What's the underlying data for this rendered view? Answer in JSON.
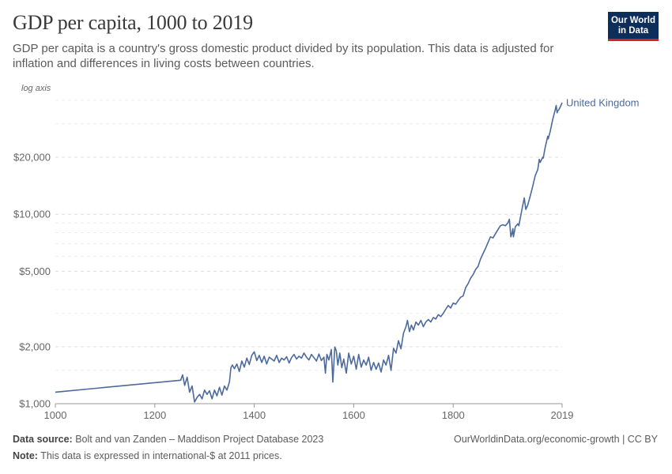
{
  "header": {
    "title": "GDP per capita, 1000 to 2019",
    "subtitle": "GDP per capita is a country's gross domestic product divided by its population. This data is adjusted for inflation and differences in living costs between countries.",
    "logo_line1": "Our World",
    "logo_line2": "in Data"
  },
  "footer": {
    "source_label": "Data source:",
    "source_text": "Bolt and van Zanden – Maddison Project Database 2023",
    "url_text": "OurWorldinData.org/economic-growth | CC BY",
    "note_label": "Note:",
    "note_text": "This data is expressed in international-$ at 2011 prices."
  },
  "colors": {
    "series": "#4c6a9c",
    "grid": "#dddddd",
    "axis": "#666666"
  },
  "chart_data": {
    "type": "line",
    "scale_label": "log axis",
    "yscale": "log",
    "xlim": [
      1000,
      2019
    ],
    "ylim": [
      1000,
      45000
    ],
    "x_ticks": [
      {
        "value": 1000,
        "label": "1000"
      },
      {
        "value": 1200,
        "label": "1200"
      },
      {
        "value": 1400,
        "label": "1400"
      },
      {
        "value": 1600,
        "label": "1600"
      },
      {
        "value": 1800,
        "label": "1800"
      },
      {
        "value": 2019,
        "label": "2019"
      }
    ],
    "y_ticks": [
      {
        "value": 1000,
        "label": "$1,000"
      },
      {
        "value": 2000,
        "label": "$2,000"
      },
      {
        "value": 5000,
        "label": "$5,000"
      },
      {
        "value": 10000,
        "label": "$10,000"
      },
      {
        "value": 20000,
        "label": "$20,000"
      }
    ],
    "series": [
      {
        "name": "United Kingdom",
        "points": [
          [
            1000,
            1150
          ],
          [
            1252,
            1330
          ],
          [
            1256,
            1420
          ],
          [
            1260,
            1250
          ],
          [
            1265,
            1380
          ],
          [
            1270,
            1150
          ],
          [
            1275,
            1240
          ],
          [
            1280,
            1020
          ],
          [
            1285,
            1080
          ],
          [
            1290,
            1120
          ],
          [
            1295,
            1060
          ],
          [
            1300,
            1180
          ],
          [
            1305,
            1120
          ],
          [
            1310,
            1170
          ],
          [
            1315,
            1060
          ],
          [
            1320,
            1180
          ],
          [
            1325,
            1100
          ],
          [
            1330,
            1220
          ],
          [
            1335,
            1110
          ],
          [
            1340,
            1240
          ],
          [
            1345,
            1180
          ],
          [
            1350,
            1300
          ],
          [
            1353,
            1550
          ],
          [
            1356,
            1600
          ],
          [
            1360,
            1530
          ],
          [
            1365,
            1620
          ],
          [
            1370,
            1480
          ],
          [
            1375,
            1680
          ],
          [
            1380,
            1560
          ],
          [
            1385,
            1740
          ],
          [
            1390,
            1610
          ],
          [
            1395,
            1800
          ],
          [
            1400,
            1880
          ],
          [
            1405,
            1690
          ],
          [
            1410,
            1800
          ],
          [
            1415,
            1650
          ],
          [
            1420,
            1780
          ],
          [
            1425,
            1620
          ],
          [
            1430,
            1760
          ],
          [
            1435,
            1720
          ],
          [
            1440,
            1680
          ],
          [
            1445,
            1800
          ],
          [
            1450,
            1650
          ],
          [
            1455,
            1740
          ],
          [
            1460,
            1700
          ],
          [
            1465,
            1770
          ],
          [
            1470,
            1640
          ],
          [
            1475,
            1750
          ],
          [
            1480,
            1820
          ],
          [
            1485,
            1720
          ],
          [
            1490,
            1780
          ],
          [
            1495,
            1740
          ],
          [
            1500,
            1850
          ],
          [
            1505,
            1760
          ],
          [
            1510,
            1700
          ],
          [
            1515,
            1820
          ],
          [
            1520,
            1750
          ],
          [
            1525,
            1680
          ],
          [
            1530,
            1830
          ],
          [
            1535,
            1690
          ],
          [
            1540,
            1760
          ],
          [
            1543,
            1450
          ],
          [
            1546,
            1820
          ],
          [
            1550,
            1700
          ],
          [
            1555,
            1930
          ],
          [
            1558,
            1300
          ],
          [
            1562,
            1990
          ],
          [
            1565,
            1900
          ],
          [
            1568,
            1600
          ],
          [
            1572,
            1850
          ],
          [
            1576,
            1550
          ],
          [
            1580,
            1720
          ],
          [
            1585,
            1450
          ],
          [
            1590,
            1850
          ],
          [
            1595,
            1620
          ],
          [
            1600,
            1780
          ],
          [
            1605,
            1520
          ],
          [
            1610,
            1820
          ],
          [
            1615,
            1560
          ],
          [
            1620,
            1700
          ],
          [
            1625,
            1600
          ],
          [
            1630,
            1760
          ],
          [
            1635,
            1500
          ],
          [
            1640,
            1650
          ],
          [
            1645,
            1520
          ],
          [
            1650,
            1640
          ],
          [
            1655,
            1470
          ],
          [
            1660,
            1700
          ],
          [
            1665,
            1600
          ],
          [
            1670,
            1800
          ],
          [
            1675,
            1500
          ],
          [
            1680,
            1960
          ],
          [
            1685,
            1850
          ],
          [
            1690,
            2150
          ],
          [
            1695,
            1950
          ],
          [
            1700,
            2350
          ],
          [
            1705,
            2550
          ],
          [
            1708,
            2750
          ],
          [
            1712,
            2400
          ],
          [
            1716,
            2600
          ],
          [
            1720,
            2450
          ],
          [
            1725,
            2700
          ],
          [
            1730,
            2600
          ],
          [
            1735,
            2750
          ],
          [
            1740,
            2550
          ],
          [
            1745,
            2700
          ],
          [
            1750,
            2780
          ],
          [
            1755,
            2700
          ],
          [
            1760,
            2850
          ],
          [
            1765,
            2800
          ],
          [
            1770,
            2950
          ],
          [
            1775,
            2880
          ],
          [
            1780,
            3000
          ],
          [
            1785,
            3150
          ],
          [
            1790,
            3300
          ],
          [
            1795,
            3200
          ],
          [
            1800,
            3400
          ],
          [
            1805,
            3350
          ],
          [
            1810,
            3500
          ],
          [
            1815,
            3650
          ],
          [
            1820,
            3700
          ],
          [
            1825,
            4100
          ],
          [
            1830,
            4300
          ],
          [
            1835,
            4600
          ],
          [
            1840,
            4800
          ],
          [
            1845,
            5100
          ],
          [
            1850,
            5300
          ],
          [
            1855,
            5800
          ],
          [
            1860,
            6200
          ],
          [
            1865,
            6600
          ],
          [
            1870,
            7100
          ],
          [
            1875,
            7600
          ],
          [
            1880,
            7500
          ],
          [
            1885,
            7900
          ],
          [
            1890,
            8300
          ],
          [
            1895,
            8700
          ],
          [
            1900,
            8800
          ],
          [
            1905,
            8700
          ],
          [
            1910,
            9000
          ],
          [
            1913,
            9400
          ],
          [
            1916,
            7600
          ],
          [
            1918,
            7900
          ],
          [
            1920,
            8400
          ],
          [
            1921,
            7600
          ],
          [
            1925,
            8600
          ],
          [
            1930,
            8900
          ],
          [
            1932,
            8700
          ],
          [
            1935,
            9600
          ],
          [
            1940,
            11200
          ],
          [
            1943,
            12200
          ],
          [
            1944,
            11600
          ],
          [
            1946,
            10600
          ],
          [
            1950,
            11200
          ],
          [
            1955,
            12500
          ],
          [
            1960,
            14100
          ],
          [
            1965,
            16000
          ],
          [
            1970,
            17200
          ],
          [
            1973,
            19500
          ],
          [
            1975,
            18800
          ],
          [
            1980,
            20000
          ],
          [
            1981,
            19800
          ],
          [
            1985,
            22500
          ],
          [
            1990,
            25800
          ],
          [
            1991,
            25000
          ],
          [
            1995,
            27300
          ],
          [
            2000,
            31500
          ],
          [
            2005,
            35500
          ],
          [
            2007,
            37500
          ],
          [
            2009,
            34300
          ],
          [
            2010,
            35000
          ],
          [
            2013,
            35800
          ],
          [
            2016,
            37200
          ],
          [
            2019,
            38800
          ]
        ]
      }
    ]
  }
}
